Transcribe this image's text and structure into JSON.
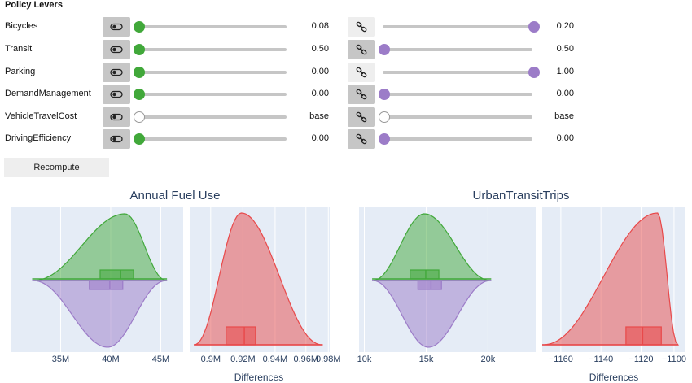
{
  "panel": {
    "title": "Policy Levers",
    "recompute_label": "Recompute",
    "levers": [
      {
        "name": "Bicycles",
        "left_toggle": "active",
        "left_level": 0.0,
        "left_value": "0.08",
        "right_toggle": "inactive",
        "right_level": 1.0,
        "right_value": "0.20"
      },
      {
        "name": "Transit",
        "left_toggle": "active",
        "left_level": 0.0,
        "left_value": "0.50",
        "right_toggle": "active",
        "right_level": 0.0,
        "right_value": "0.50"
      },
      {
        "name": "Parking",
        "left_toggle": "active",
        "left_level": 0.0,
        "left_value": "0.00",
        "right_toggle": "inactive",
        "right_level": 1.0,
        "right_value": "1.00"
      },
      {
        "name": "DemandManagement",
        "left_toggle": "active",
        "left_level": 0.0,
        "left_value": "0.00",
        "right_toggle": "active",
        "right_level": 0.0,
        "right_value": "0.00"
      },
      {
        "name": "VehicleTravelCost",
        "left_toggle": "active",
        "left_level": 0.0,
        "left_value": "base",
        "right_toggle": "active",
        "right_level": 0.0,
        "right_value": "base",
        "style": "unset"
      },
      {
        "name": "DrivingEfficiency",
        "left_toggle": "active",
        "left_level": 0.0,
        "left_value": "0.00",
        "right_toggle": "active",
        "right_level": 0.0,
        "right_value": "0.00"
      }
    ],
    "icons": {
      "toggle": "toggle-switch-icon",
      "link": "link-icon"
    },
    "colors": {
      "accent_green": "#41a83a",
      "accent_purple": "#9c7cc8",
      "button_active": "#c6c6c6",
      "button_inactive": "#eeeeee"
    }
  },
  "chart_data": [
    {
      "type": "violin",
      "group_title": "Annual Fuel Use",
      "xlabel": "",
      "ticks": [
        "35M",
        "40M",
        "45M"
      ],
      "xlim": [
        31000000,
        47000000
      ],
      "series": [
        {
          "color": "#41a83a",
          "side": "top",
          "peak": 41600000,
          "box": [
            39300000,
            41200000,
            42400000
          ],
          "whiskers": [
            33000000,
            45500000
          ]
        },
        {
          "color": "#9c7cc8",
          "side": "bottom",
          "peak": 40000000,
          "box": [
            38300000,
            40200000,
            41400000
          ],
          "whiskers": [
            33000000,
            45500000
          ]
        }
      ]
    },
    {
      "type": "violin",
      "xlabel": "Differences",
      "ticks": [
        "0.9M",
        "0.92M",
        "0.94M",
        "0.96M",
        "0.98M"
      ],
      "xlim": [
        0.89,
        0.99
      ],
      "series": [
        {
          "color": "#e8494a",
          "side": "top",
          "peak": 0.927,
          "box": [
            0.916,
            0.929,
            0.937
          ],
          "whiskers": [
            0.893,
            0.985
          ]
        }
      ]
    },
    {
      "type": "violin",
      "group_title": "UrbanTransitTrips",
      "xlabel": "",
      "ticks": [
        "10k",
        "15k",
        "20k"
      ],
      "xlim": [
        9500,
        23000
      ],
      "series": [
        {
          "color": "#41a83a",
          "side": "top",
          "peak": 14500,
          "box": [
            13400,
            14600,
            15600
          ],
          "whiskers": [
            10500,
            19600
          ]
        },
        {
          "color": "#9c7cc8",
          "side": "bottom",
          "peak": 14800,
          "box": [
            14000,
            15000,
            15800
          ],
          "whiskers": [
            10500,
            19600
          ]
        }
      ]
    },
    {
      "type": "violin",
      "xlabel": "Differences",
      "ticks": [
        "−1160",
        "−1140",
        "−1120",
        "−1100"
      ],
      "xlim": [
        -1171,
        -1094
      ],
      "series": [
        {
          "color": "#e8494a",
          "side": "top",
          "peak": -1109,
          "box": [
            -1126,
            -1117,
            -1107
          ],
          "whiskers": [
            -1171,
            -1098
          ]
        }
      ]
    }
  ]
}
